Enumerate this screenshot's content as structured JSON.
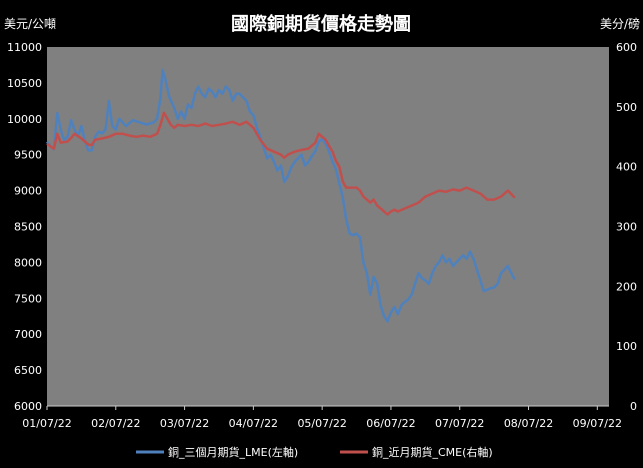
{
  "chart_data": {
    "type": "line",
    "title": "國際銅期貨價格走勢圖",
    "ylabel_left": "美元/公噸",
    "ylabel_right": "美分/磅",
    "ylim_left": [
      6000,
      11000
    ],
    "ylim_right": [
      0,
      600
    ],
    "yticks_left": [
      "6000",
      "6500",
      "7000",
      "7500",
      "8000",
      "8500",
      "9000",
      "9500",
      "10000",
      "10500",
      "11000"
    ],
    "yticks_right": [
      "0",
      "100",
      "200",
      "300",
      "400",
      "500",
      "600"
    ],
    "xticks": [
      "01/07/22",
      "02/07/22",
      "03/07/22",
      "04/07/22",
      "05/07/22",
      "06/07/22",
      "07/07/22",
      "08/07/22",
      "09/07/22"
    ],
    "grid": false,
    "plot_background": "#808080",
    "legend_position": "bottom",
    "series": [
      {
        "name": "銅_三個月期貨_LME(左軸)",
        "axis": "left",
        "color": "#4F81BD",
        "points": [
          [
            0,
            9680
          ],
          [
            0.05,
            9620
          ],
          [
            0.1,
            9580
          ],
          [
            0.15,
            10080
          ],
          [
            0.2,
            9850
          ],
          [
            0.25,
            9700
          ],
          [
            0.3,
            9750
          ],
          [
            0.35,
            9980
          ],
          [
            0.4,
            9850
          ],
          [
            0.45,
            9760
          ],
          [
            0.5,
            9900
          ],
          [
            0.55,
            9700
          ],
          [
            0.6,
            9560
          ],
          [
            0.65,
            9560
          ],
          [
            0.7,
            9750
          ],
          [
            0.75,
            9820
          ],
          [
            0.8,
            9800
          ],
          [
            0.85,
            9850
          ],
          [
            0.9,
            10250
          ],
          [
            0.95,
            9900
          ],
          [
            1.0,
            9850
          ],
          [
            1.05,
            10000
          ],
          [
            1.15,
            9900
          ],
          [
            1.25,
            9980
          ],
          [
            1.35,
            9950
          ],
          [
            1.45,
            9920
          ],
          [
            1.55,
            9950
          ],
          [
            1.6,
            10000
          ],
          [
            1.65,
            10300
          ],
          [
            1.68,
            10680
          ],
          [
            1.72,
            10550
          ],
          [
            1.78,
            10300
          ],
          [
            1.85,
            10150
          ],
          [
            1.9,
            10000
          ],
          [
            1.95,
            10100
          ],
          [
            2.0,
            10000
          ],
          [
            2.05,
            10200
          ],
          [
            2.1,
            10150
          ],
          [
            2.15,
            10350
          ],
          [
            2.2,
            10450
          ],
          [
            2.25,
            10350
          ],
          [
            2.3,
            10300
          ],
          [
            2.35,
            10420
          ],
          [
            2.4,
            10380
          ],
          [
            2.45,
            10300
          ],
          [
            2.5,
            10400
          ],
          [
            2.55,
            10350
          ],
          [
            2.6,
            10450
          ],
          [
            2.65,
            10400
          ],
          [
            2.7,
            10250
          ],
          [
            2.75,
            10350
          ],
          [
            2.8,
            10350
          ],
          [
            2.85,
            10300
          ],
          [
            2.9,
            10250
          ],
          [
            2.95,
            10100
          ],
          [
            3.0,
            10050
          ],
          [
            3.05,
            9880
          ],
          [
            3.1,
            9750
          ],
          [
            3.15,
            9600
          ],
          [
            3.2,
            9450
          ],
          [
            3.25,
            9500
          ],
          [
            3.3,
            9400
          ],
          [
            3.35,
            9280
          ],
          [
            3.4,
            9350
          ],
          [
            3.45,
            9120
          ],
          [
            3.5,
            9200
          ],
          [
            3.55,
            9320
          ],
          [
            3.6,
            9400
          ],
          [
            3.65,
            9450
          ],
          [
            3.7,
            9500
          ],
          [
            3.75,
            9350
          ],
          [
            3.8,
            9400
          ],
          [
            3.85,
            9480
          ],
          [
            3.9,
            9550
          ],
          [
            3.95,
            9680
          ],
          [
            4.0,
            9720
          ],
          [
            4.05,
            9650
          ],
          [
            4.1,
            9550
          ],
          [
            4.15,
            9400
          ],
          [
            4.2,
            9300
          ],
          [
            4.25,
            9100
          ],
          [
            4.3,
            8900
          ],
          [
            4.35,
            8600
          ],
          [
            4.4,
            8400
          ],
          [
            4.45,
            8380
          ],
          [
            4.5,
            8400
          ],
          [
            4.55,
            8350
          ],
          [
            4.6,
            8000
          ],
          [
            4.65,
            7850
          ],
          [
            4.7,
            7550
          ],
          [
            4.75,
            7800
          ],
          [
            4.8,
            7700
          ],
          [
            4.85,
            7400
          ],
          [
            4.9,
            7250
          ],
          [
            4.95,
            7180
          ],
          [
            5.0,
            7300
          ],
          [
            5.05,
            7380
          ],
          [
            5.1,
            7280
          ],
          [
            5.15,
            7400
          ],
          [
            5.2,
            7450
          ],
          [
            5.25,
            7480
          ],
          [
            5.3,
            7550
          ],
          [
            5.35,
            7700
          ],
          [
            5.4,
            7850
          ],
          [
            5.45,
            7780
          ],
          [
            5.5,
            7750
          ],
          [
            5.55,
            7700
          ],
          [
            5.6,
            7850
          ],
          [
            5.65,
            7950
          ],
          [
            5.7,
            8000
          ],
          [
            5.75,
            8100
          ],
          [
            5.8,
            8000
          ],
          [
            5.85,
            8050
          ],
          [
            5.9,
            7950
          ],
          [
            5.95,
            8000
          ],
          [
            6.0,
            8050
          ],
          [
            6.05,
            8100
          ],
          [
            6.1,
            8050
          ],
          [
            6.15,
            8150
          ],
          [
            6.2,
            8050
          ],
          [
            6.25,
            7900
          ],
          [
            6.3,
            7750
          ],
          [
            6.35,
            7600
          ],
          [
            6.4,
            7620
          ],
          [
            6.45,
            7640
          ],
          [
            6.5,
            7650
          ],
          [
            6.55,
            7700
          ],
          [
            6.6,
            7850
          ],
          [
            6.65,
            7900
          ],
          [
            6.7,
            7950
          ],
          [
            6.75,
            7850
          ],
          [
            6.8,
            7760
          ]
        ]
      },
      {
        "name": "銅_近月期貨_CME(右軸)",
        "axis": "right",
        "color": "#C0504D",
        "points": [
          [
            0,
            438
          ],
          [
            0.1,
            430
          ],
          [
            0.15,
            455
          ],
          [
            0.2,
            440
          ],
          [
            0.3,
            442
          ],
          [
            0.35,
            448
          ],
          [
            0.4,
            455
          ],
          [
            0.5,
            447
          ],
          [
            0.6,
            437
          ],
          [
            0.65,
            436
          ],
          [
            0.7,
            445
          ],
          [
            0.8,
            447
          ],
          [
            0.9,
            450
          ],
          [
            1.0,
            455
          ],
          [
            1.1,
            455
          ],
          [
            1.2,
            452
          ],
          [
            1.3,
            450
          ],
          [
            1.4,
            452
          ],
          [
            1.5,
            450
          ],
          [
            1.6,
            455
          ],
          [
            1.65,
            470
          ],
          [
            1.7,
            490
          ],
          [
            1.75,
            480
          ],
          [
            1.8,
            470
          ],
          [
            1.85,
            465
          ],
          [
            1.9,
            470
          ],
          [
            2.0,
            468
          ],
          [
            2.1,
            470
          ],
          [
            2.2,
            468
          ],
          [
            2.3,
            472
          ],
          [
            2.4,
            468
          ],
          [
            2.5,
            470
          ],
          [
            2.6,
            472
          ],
          [
            2.7,
            475
          ],
          [
            2.8,
            470
          ],
          [
            2.9,
            475
          ],
          [
            3.0,
            465
          ],
          [
            3.05,
            455
          ],
          [
            3.1,
            445
          ],
          [
            3.2,
            430
          ],
          [
            3.3,
            425
          ],
          [
            3.4,
            420
          ],
          [
            3.45,
            415
          ],
          [
            3.5,
            420
          ],
          [
            3.6,
            425
          ],
          [
            3.7,
            428
          ],
          [
            3.8,
            430
          ],
          [
            3.9,
            440
          ],
          [
            3.95,
            455
          ],
          [
            4.0,
            450
          ],
          [
            4.05,
            445
          ],
          [
            4.1,
            435
          ],
          [
            4.15,
            425
          ],
          [
            4.2,
            410
          ],
          [
            4.25,
            400
          ],
          [
            4.3,
            375
          ],
          [
            4.35,
            365
          ],
          [
            4.4,
            365
          ],
          [
            4.5,
            365
          ],
          [
            4.55,
            360
          ],
          [
            4.6,
            350
          ],
          [
            4.65,
            345
          ],
          [
            4.7,
            340
          ],
          [
            4.75,
            345
          ],
          [
            4.8,
            335
          ],
          [
            4.85,
            330
          ],
          [
            4.9,
            325
          ],
          [
            4.95,
            320
          ],
          [
            5.0,
            325
          ],
          [
            5.05,
            328
          ],
          [
            5.1,
            325
          ],
          [
            5.2,
            330
          ],
          [
            5.3,
            335
          ],
          [
            5.4,
            340
          ],
          [
            5.5,
            350
          ],
          [
            5.6,
            355
          ],
          [
            5.7,
            360
          ],
          [
            5.8,
            358
          ],
          [
            5.9,
            362
          ],
          [
            6.0,
            360
          ],
          [
            6.1,
            365
          ],
          [
            6.2,
            360
          ],
          [
            6.3,
            355
          ],
          [
            6.4,
            345
          ],
          [
            6.5,
            345
          ],
          [
            6.6,
            350
          ],
          [
            6.7,
            360
          ],
          [
            6.8,
            348
          ]
        ]
      }
    ]
  }
}
